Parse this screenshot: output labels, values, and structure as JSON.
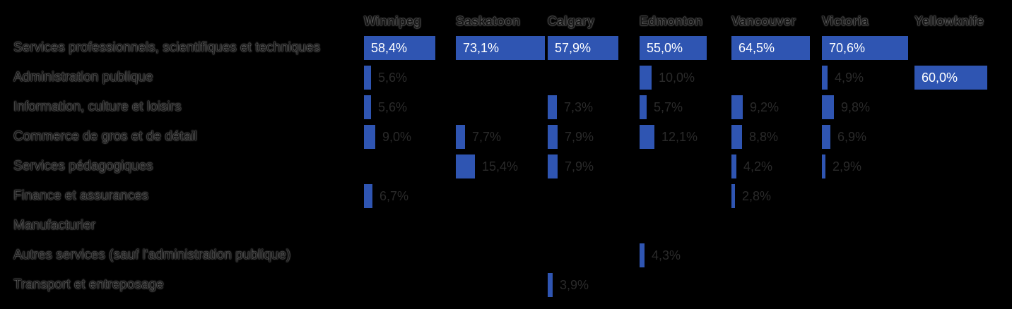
{
  "chart_data": {
    "type": "bar",
    "orientation": "horizontal",
    "layout": "small-multiples",
    "value_unit": "%",
    "number_format": "decimal-comma",
    "columns": [
      "Winnipeg",
      "Saskatoon",
      "Calgary",
      "Edmonton",
      "Vancouver",
      "Victoria",
      "Yellowknife"
    ],
    "categories": [
      "Services professionnels, scientifiques et techniques",
      "Administration publique",
      "Information, culture et loisirs",
      "Commerce de gros et de détail",
      "Services pédagogiques",
      "Finance et assurances",
      "Manufacturier",
      "Autres services (sauf l'administration publique)",
      "Transport et entreposage"
    ],
    "series": [
      {
        "name": "Winnipeg",
        "values": [
          58.4,
          5.6,
          5.6,
          9.0,
          null,
          6.7,
          null,
          null,
          null
        ]
      },
      {
        "name": "Saskatoon",
        "values": [
          73.1,
          null,
          null,
          7.7,
          15.4,
          null,
          null,
          null,
          null
        ]
      },
      {
        "name": "Calgary",
        "values": [
          57.9,
          null,
          7.3,
          7.9,
          7.9,
          null,
          null,
          null,
          3.9
        ]
      },
      {
        "name": "Edmonton",
        "values": [
          55.0,
          10.0,
          5.7,
          12.1,
          null,
          null,
          null,
          4.3,
          null
        ]
      },
      {
        "name": "Vancouver",
        "values": [
          64.5,
          null,
          9.2,
          8.8,
          4.2,
          2.8,
          null,
          null,
          null
        ]
      },
      {
        "name": "Victoria",
        "values": [
          70.6,
          4.9,
          9.8,
          6.9,
          2.9,
          null,
          null,
          null,
          null
        ]
      },
      {
        "name": "Yellowknife",
        "values": [
          null,
          60.0,
          null,
          null,
          null,
          null,
          null,
          null,
          null
        ]
      }
    ],
    "xlim": [
      0,
      73.1
    ],
    "grid": false,
    "legend": "none",
    "colors": {
      "bar": "#2f55b2",
      "background": "#000000"
    }
  }
}
